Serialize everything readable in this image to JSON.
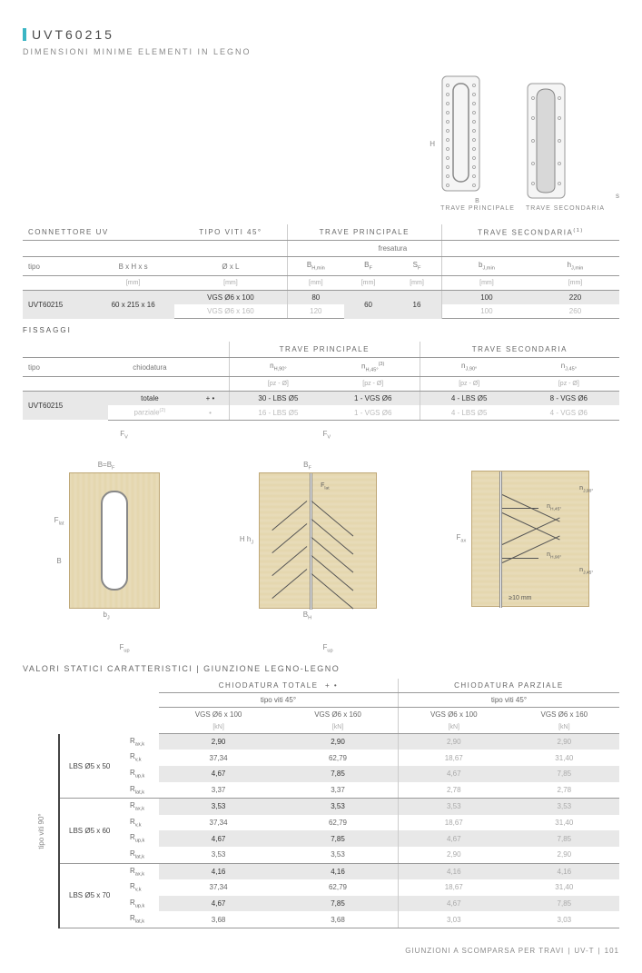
{
  "page": {
    "title": "UVT60215",
    "subtitle": "DIMENSIONI MINIME ELEMENTI IN LEGNO",
    "footer_text": "GIUNZIONI A SCOMPARSA PER TRAVI",
    "footer_code": "UV-T",
    "footer_page": "101"
  },
  "images": {
    "h_label": "H",
    "b_label": "B",
    "caption1": "TRAVE PRINCIPALE",
    "caption2": "TRAVE SECONDARIA",
    "s_label": "s"
  },
  "table1": {
    "headers": {
      "connettore": "CONNETTORE UV",
      "tipo_viti": "TIPO VITI 45°",
      "trave_princ": "TRAVE PRINCIPALE",
      "trave_sec": "TRAVE SECONDARIA",
      "tipo": "tipo",
      "bhs": "B x H x s",
      "ol": "Ø x L",
      "bhmin": "B",
      "bhmin_sub": "H,min",
      "bf": "B",
      "bf_sub": "F",
      "sf": "S",
      "sf_sub": "F",
      "bjmin": "b",
      "bjmin_sub": "J,min",
      "hjmin": "h",
      "hjmin_sub": "J,min",
      "mm": "[mm]",
      "fresatura": "fresatura",
      "note": "(1)"
    },
    "rows": [
      {
        "tipo": "UVT60215",
        "bhs": "60 x 215 x 16",
        "ol": "VGS Ø6 x 100",
        "bhmin": "80",
        "bf": "60",
        "sf": "16",
        "bjmin": "100",
        "hjmin": "220",
        "highlight": true
      },
      {
        "tipo": "",
        "bhs": "",
        "ol": "VGS Ø6 x 160",
        "bhmin": "120",
        "bf": "",
        "sf": "",
        "bjmin": "100",
        "hjmin": "260",
        "highlight": false
      }
    ]
  },
  "fissaggi_label": "FISSAGGI",
  "table2": {
    "headers": {
      "trave_princ": "TRAVE PRINCIPALE",
      "trave_sec": "TRAVE SECONDARIA",
      "tipo": "tipo",
      "chiodatura": "chiodatura",
      "nh90": "n",
      "nh90_sub": "H,90°",
      "nh45": "n",
      "nh45_sub": "H,45°",
      "nh45_sup": "(3)",
      "nj90": "n",
      "nj90_sub": "J,90°",
      "nj45": "n",
      "nj45_sub": "J,45°",
      "pzO": "[pz - Ø]"
    },
    "rows": [
      {
        "tipo": "UVT60215",
        "chiod": "totale",
        "sym": "+ •",
        "nh90": "30 - LBS Ø5",
        "nh45": "1 - VGS Ø6",
        "nj90": "4 - LBS Ø5",
        "nj45": "8 - VGS Ø6",
        "highlight": true
      },
      {
        "tipo": "",
        "chiod": "parziale",
        "chiod_sup": "(2)",
        "sym": "•",
        "nh90": "16 - LBS Ø5",
        "nh45": "1 - VGS Ø6",
        "nj90": "4 - LBS Ø5",
        "nj45": "4 - VGS Ø6",
        "highlight": false
      }
    ]
  },
  "diagrams": {
    "fv": "F",
    "fv_sub": "V",
    "bbf": "B=B",
    "bbf_sub": "F",
    "flat": "F",
    "flat_sub": "lat",
    "b_dim": "B",
    "bj": "b",
    "bj_sub": "J",
    "bf": "B",
    "bf_sub": "F",
    "h": "H",
    "hj": "h",
    "hj_sub": "J",
    "bh": "B",
    "bh_sub": "H",
    "fup": "F",
    "fup_sub": "up",
    "fax": "F",
    "fax_sub": "ax",
    "nj90": "n",
    "nj90_sub": "J,90°",
    "nh45": "n",
    "nh45_sub": "H,45°",
    "nh90": "n",
    "nh90_sub": "H,90°",
    "nj45": "n",
    "nj45_sub": "J,45°",
    "ten_mm": "≥10 mm"
  },
  "valori_title": "VALORI STATICI CARATTERISTICI | GIUNZIONE LEGNO-LEGNO",
  "table3": {
    "headers": {
      "chiod_tot": "CHIODATURA TOTALE",
      "chiod_tot_sym": "+ •",
      "chiod_parz": "CHIODATURA PARZIALE",
      "tipo_viti": "tipo viti 45°",
      "vgs100": "VGS Ø6 x 100",
      "vgs160": "VGS Ø6 x 160",
      "kn": "[kN]",
      "side": "tipo viti 90°",
      "r_ax": "R",
      "r_ax_sub": "ax,k",
      "r_v": "R",
      "r_v_sub": "v,k",
      "r_up": "R",
      "r_up_sub": "up,k",
      "r_lat": "R",
      "r_lat_sub": "lat,k"
    },
    "groups": [
      {
        "lbs": "LBS Ø5 x 50",
        "rows": [
          {
            "label": "ax",
            "v": [
              "2,90",
              "2,90",
              "2,90",
              "2,90"
            ],
            "hl": true
          },
          {
            "label": "v",
            "v": [
              "37,34",
              "62,79",
              "18,67",
              "31,40"
            ],
            "hl": false
          },
          {
            "label": "up",
            "v": [
              "4,67",
              "7,85",
              "4,67",
              "7,85"
            ],
            "hl": true
          },
          {
            "label": "lat",
            "v": [
              "3,37",
              "3,37",
              "2,78",
              "2,78"
            ],
            "hl": false
          }
        ]
      },
      {
        "lbs": "LBS Ø5 x 60",
        "rows": [
          {
            "label": "ax",
            "v": [
              "3,53",
              "3,53",
              "3,53",
              "3,53"
            ],
            "hl": true
          },
          {
            "label": "v",
            "v": [
              "37,34",
              "62,79",
              "18,67",
              "31,40"
            ],
            "hl": false
          },
          {
            "label": "up",
            "v": [
              "4,67",
              "7,85",
              "4,67",
              "7,85"
            ],
            "hl": true
          },
          {
            "label": "lat",
            "v": [
              "3,53",
              "3,53",
              "2,90",
              "2,90"
            ],
            "hl": false
          }
        ]
      },
      {
        "lbs": "LBS Ø5 x 70",
        "rows": [
          {
            "label": "ax",
            "v": [
              "4,16",
              "4,16",
              "4,16",
              "4,16"
            ],
            "hl": true
          },
          {
            "label": "v",
            "v": [
              "37,34",
              "62,79",
              "18,67",
              "31,40"
            ],
            "hl": false
          },
          {
            "label": "up",
            "v": [
              "4,67",
              "7,85",
              "4,67",
              "7,85"
            ],
            "hl": true
          },
          {
            "label": "lat",
            "v": [
              "3,68",
              "3,68",
              "3,03",
              "3,03"
            ],
            "hl": false
          }
        ]
      }
    ]
  },
  "colors": {
    "accent": "#3bb5c4",
    "wood": "#e8dcba",
    "wood_border": "#bfa878",
    "text": "#5a5a5a",
    "highlight_bg": "#e8e8e8"
  }
}
